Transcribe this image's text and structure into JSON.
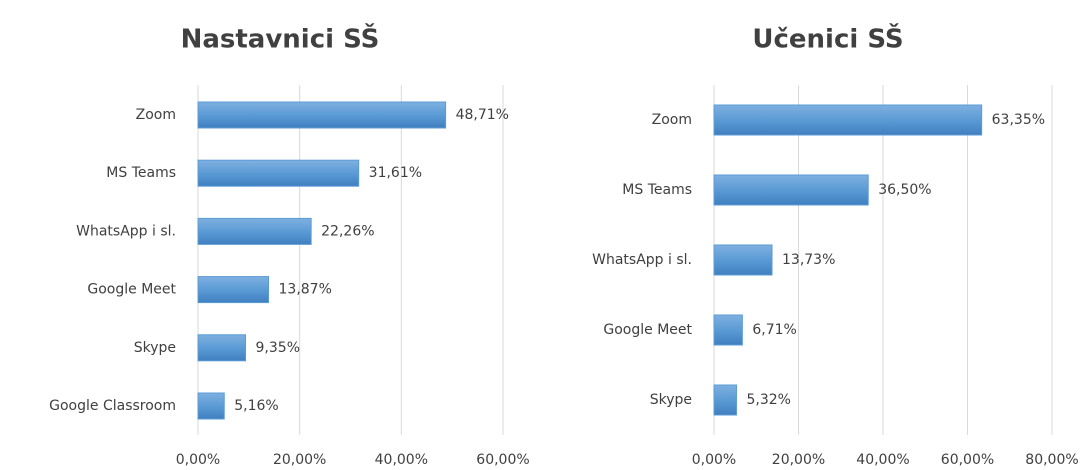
{
  "chart_data": [
    {
      "type": "barh",
      "title": "Nastavnici SŠ",
      "categories": [
        "Zoom",
        "MS Teams",
        "WhatsApp i sl.",
        "Google Meet",
        "Skype",
        "Google Classroom"
      ],
      "values": [
        48.71,
        31.61,
        22.26,
        13.87,
        9.35,
        5.16
      ],
      "value_labels": [
        "48,71%",
        "31,61%",
        "22,26%",
        "13,87%",
        "9,35%",
        "5,16%"
      ],
      "color": "#5b9bd5",
      "xlim": [
        0,
        60
      ],
      "xticks": [
        {
          "value": 0,
          "label": "0,00%"
        },
        {
          "value": 20,
          "label": "20,00%"
        },
        {
          "value": 40,
          "label": "40,00%"
        },
        {
          "value": 60,
          "label": "60,00%"
        }
      ],
      "grid": true
    },
    {
      "type": "barh",
      "title": "Učenici SŠ",
      "categories": [
        "Zoom",
        "MS Teams",
        "WhatsApp i sl.",
        "Google Meet",
        "Skype"
      ],
      "values": [
        63.35,
        36.5,
        13.73,
        6.71,
        5.32
      ],
      "value_labels": [
        "63,35%",
        "36,50%",
        "13,73%",
        "6,71%",
        "5,32%"
      ],
      "color": "#5b9bd5",
      "xlim": [
        0,
        80
      ],
      "xticks": [
        {
          "value": 0,
          "label": "0,00%"
        },
        {
          "value": 20,
          "label": "20,00%"
        },
        {
          "value": 40,
          "label": "40,00%"
        },
        {
          "value": 60,
          "label": "60,00%"
        },
        {
          "value": 80,
          "label": "80,00%"
        }
      ],
      "grid": true
    }
  ]
}
